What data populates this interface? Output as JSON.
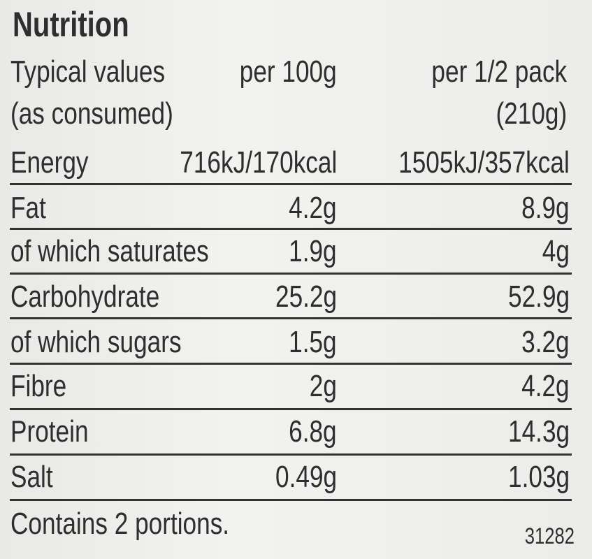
{
  "title": "Nutrition",
  "table": {
    "header": [
      [
        "Typical values",
        "(as consumed)"
      ],
      [
        "per 100g"
      ],
      [
        "per 1/2 pack",
        "(210g)"
      ]
    ],
    "rows": [
      [
        "Energy",
        "716kJ/170kcal",
        "1505kJ/357kcal"
      ],
      [
        "Fat",
        "4.2g",
        "8.9g"
      ],
      [
        "of which saturates",
        "1.9g",
        "4g"
      ],
      [
        "Carbohydrate",
        "25.2g",
        "52.9g"
      ],
      [
        "of which sugars",
        "1.5g",
        "3.2g"
      ],
      [
        "Fibre",
        "2g",
        "4.2g"
      ],
      [
        "Protein",
        "6.8g",
        "14.3g"
      ],
      [
        "Salt",
        "0.49g",
        "1.03g"
      ]
    ]
  },
  "footer": {
    "note": "Contains 2 portions.",
    "code": "31282"
  }
}
